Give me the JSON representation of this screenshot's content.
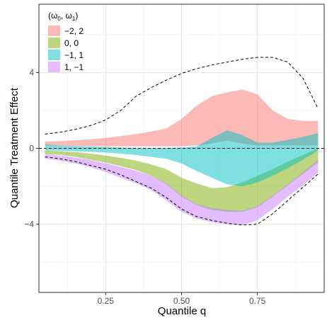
{
  "chart_data": {
    "type": "area",
    "xlabel": "Quantile q",
    "ylabel": "Quantile Treatment Effect",
    "xlim": [
      0.03,
      0.97
    ],
    "ylim": [
      -7.6,
      7.6
    ],
    "x_ticks": [
      0.25,
      0.5,
      0.75
    ],
    "x_tick_labels": [
      "0.25",
      "0.50",
      "0.75"
    ],
    "y_ticks": [
      -4,
      0,
      4
    ],
    "y_tick_labels": [
      "−4",
      "0",
      "4"
    ],
    "grid": true,
    "legend": {
      "placement": "top-left",
      "title": "(ω0, ω1)",
      "title_main_1": "(ω",
      "title_sub_1": "0",
      "title_main_2": ", ω",
      "title_sub_2": "1",
      "title_main_3": ")"
    },
    "x": [
      0.05,
      0.1,
      0.15,
      0.2,
      0.25,
      0.3,
      0.35,
      0.4,
      0.45,
      0.5,
      0.55,
      0.6,
      0.65,
      0.7,
      0.75,
      0.8,
      0.85,
      0.9,
      0.95
    ],
    "series": [
      {
        "name": "−2, 2",
        "color": "#F8766D",
        "upper": [
          0.35,
          0.38,
          0.42,
          0.48,
          0.55,
          0.65,
          0.75,
          0.88,
          1.05,
          1.55,
          2.25,
          2.75,
          2.95,
          3.1,
          2.85,
          2.0,
          1.55,
          1.45,
          1.45
        ],
        "lower": [
          0.15,
          0.14,
          0.13,
          0.12,
          0.11,
          0.1,
          0.1,
          0.1,
          0.1,
          0.1,
          0.15,
          0.25,
          0.4,
          0.25,
          0.15,
          0.15,
          0.15,
          0.15,
          0.15
        ]
      },
      {
        "name": "0, 0",
        "color": "#7CAE00",
        "upper": [
          -0.1,
          -0.15,
          -0.2,
          -0.28,
          -0.38,
          -0.5,
          -0.65,
          -0.85,
          -1.1,
          -1.55,
          -1.85,
          -2.1,
          -2.05,
          -1.8,
          -1.45,
          -1.1,
          -0.7,
          -0.35,
          0.0
        ],
        "lower": [
          -0.3,
          -0.35,
          -0.45,
          -0.6,
          -0.75,
          -0.95,
          -1.15,
          -1.45,
          -1.9,
          -2.55,
          -3.0,
          -3.25,
          -3.35,
          -3.35,
          -3.1,
          -2.55,
          -1.95,
          -1.35,
          -0.75
        ]
      },
      {
        "name": "−1, 1",
        "color": "#00BFC4",
        "upper": [
          0.2,
          0.15,
          0.12,
          0.1,
          0.08,
          0.05,
          0.03,
          0.02,
          0.02,
          0.05,
          0.1,
          0.55,
          0.95,
          0.7,
          0.3,
          0.3,
          0.45,
          0.6,
          0.8
        ],
        "lower": [
          -0.1,
          -0.12,
          -0.15,
          -0.18,
          -0.22,
          -0.28,
          -0.35,
          -0.45,
          -0.55,
          -0.8,
          -1.2,
          -1.55,
          -1.9,
          -2.0,
          -1.8,
          -1.45,
          -1.05,
          -0.6,
          -0.1
        ]
      },
      {
        "name": "1, −1",
        "color": "#C77CFF",
        "upper": [
          -0.3,
          -0.38,
          -0.48,
          -0.62,
          -0.78,
          -0.98,
          -1.18,
          -1.45,
          -1.85,
          -2.5,
          -2.95,
          -3.15,
          -3.25,
          -3.3,
          -3.05,
          -2.5,
          -1.9,
          -1.25,
          -0.6
        ],
        "lower": [
          -0.55,
          -0.65,
          -0.8,
          -1.0,
          -1.25,
          -1.55,
          -1.85,
          -2.2,
          -2.75,
          -3.35,
          -3.7,
          -3.9,
          -4.0,
          -4.05,
          -3.8,
          -3.2,
          -2.55,
          -1.95,
          -1.3
        ]
      }
    ],
    "envelope": {
      "upper": [
        0.75,
        0.85,
        1.0,
        1.2,
        1.5,
        2.0,
        2.75,
        3.2,
        3.6,
        3.95,
        4.2,
        4.4,
        4.55,
        4.7,
        4.8,
        4.8,
        4.55,
        3.7,
        2.1
      ],
      "lower": [
        -0.45,
        -0.55,
        -0.7,
        -0.9,
        -1.1,
        -1.4,
        -1.75,
        -2.1,
        -2.6,
        -3.2,
        -3.6,
        -3.8,
        -3.95,
        -4.05,
        -4.0,
        -3.45,
        -2.75,
        -2.05,
        -1.35
      ]
    },
    "reference_line_y": 0
  }
}
